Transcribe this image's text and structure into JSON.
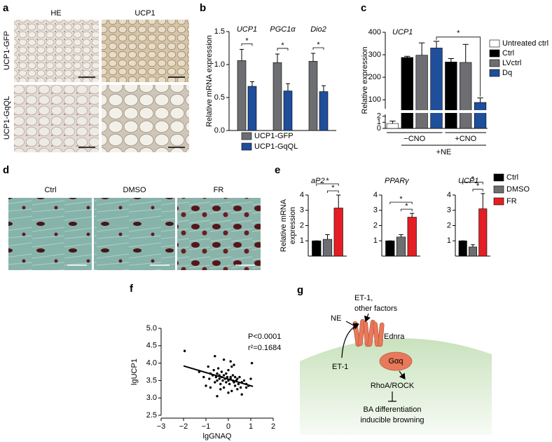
{
  "panel_a": {
    "panel": "a",
    "columns": [
      "HE",
      "UCP1"
    ],
    "rows": [
      "UCP1-GFP",
      "UCP1-GqQL"
    ]
  },
  "panel_d": {
    "panel": "d",
    "labels": [
      "Ctrl",
      "DMSO",
      "FR"
    ]
  },
  "panel_g": {
    "panel": "g",
    "ne": "NE",
    "factors": [
      "ET-1,",
      "other factors"
    ],
    "receptor": "Ednra",
    "g_protein": "Gαq",
    "ligand": "ET-1",
    "effector": "RhoA/ROCK",
    "outcome": [
      "BA differentiation",
      "inducible browning"
    ]
  },
  "chart_data": [
    {
      "type": "bar",
      "panel": "b",
      "ylabel": "Relative mRNA expression",
      "categories": [
        "UCP1",
        "PGC1α",
        "Dio2"
      ],
      "series": [
        {
          "name": "UCP1-GFP",
          "color": "#6d6e71",
          "values": [
            1.06,
            1.03,
            1.05
          ],
          "errors": [
            0.17,
            0.13,
            0.12
          ]
        },
        {
          "name": "UCP1-GqQL",
          "color": "#1f4e9a",
          "values": [
            0.67,
            0.6,
            0.59
          ],
          "errors": [
            0.07,
            0.11,
            0.09
          ]
        }
      ],
      "ylim": [
        0,
        1.5
      ],
      "yticks": [
        {
          "value": 0,
          "label": "0.0"
        },
        0.5,
        {
          "value": 1,
          "label": "1.0"
        },
        1.5
      ],
      "significance": [
        "*",
        "*",
        "*"
      ]
    },
    {
      "type": "bar",
      "panel": "c",
      "title": "UCP1",
      "ylabel": "Relative expression",
      "categories": [
        "−CNO",
        "+CNO"
      ],
      "group_label": "+NE",
      "series": [
        {
          "name": "Untreated ctrl",
          "color": "#ffffff",
          "values": [
            0.8,
            null
          ],
          "errors": [
            0.4,
            null
          ]
        },
        {
          "name": "Ctrl",
          "color": "#000000",
          "values": [
            288,
            268
          ],
          "errors": [
            5,
            15
          ]
        },
        {
          "name": "LVctrl",
          "color": "#6d6e71",
          "values": [
            298,
            266
          ],
          "errors": [
            55,
            80
          ]
        },
        {
          "name": "Dq",
          "color": "#1f4e9a",
          "values": [
            330,
            88
          ],
          "errors": [
            30,
            20
          ]
        }
      ],
      "ylim": [
        0,
        400
      ],
      "axis_break": [
        2.3,
        60
      ],
      "yticks": [
        0,
        1,
        2,
        100,
        200,
        300,
        400
      ],
      "significance": [
        "*"
      ]
    },
    {
      "type": "bar",
      "panel": "e",
      "title": "aP2",
      "ylabel": [
        "Relative mRNA",
        "expression"
      ],
      "categories": [
        "Ctrl",
        "DMSO",
        "FR"
      ],
      "colors": [
        "#000000",
        "#6d6e71",
        "#e31e24"
      ],
      "values": [
        1,
        1.1,
        3.15
      ],
      "errors": [
        0,
        0.3,
        0.85
      ],
      "ylim": [
        0,
        4
      ],
      "yticks": [
        1,
        2,
        3,
        4
      ],
      "significance": [
        "*",
        "*"
      ]
    },
    {
      "type": "bar",
      "title": "PPARγ",
      "colors": [
        "#000000",
        "#6d6e71",
        "#e31e24"
      ],
      "values": [
        1,
        1.25,
        2.55
      ],
      "errors": [
        0,
        0.15,
        0.25
      ],
      "ylim": [
        0,
        4
      ],
      "yticks": [
        1,
        2,
        3,
        4
      ],
      "significance": [
        "*",
        "*"
      ]
    },
    {
      "type": "bar",
      "title": "UCP1",
      "colors": [
        "#000000",
        "#6d6e71",
        "#e31e24"
      ],
      "values": [
        1,
        0.6,
        3.1
      ],
      "errors": [
        0,
        0.15,
        1.0
      ],
      "ylim": [
        0,
        4
      ],
      "yticks": [
        1,
        2,
        3,
        4
      ],
      "significance": [
        "*",
        "*"
      ]
    },
    {
      "type": "scatter",
      "panel": "f",
      "xlabel": "lgGNAQ",
      "ylabel": "lgUCP1",
      "color": "#000000",
      "x": [
        -1.95,
        -1.3,
        -1.1,
        -0.9,
        -0.85,
        -0.8,
        -0.7,
        -0.65,
        -0.6,
        -0.55,
        -0.5,
        -0.5,
        -0.45,
        -0.4,
        -0.4,
        -0.35,
        -0.3,
        -0.3,
        -0.25,
        -0.2,
        -0.2,
        -0.15,
        -0.1,
        -0.1,
        -0.05,
        0,
        0,
        0.05,
        0.1,
        0.1,
        0.15,
        0.2,
        0.2,
        0.25,
        0.3,
        0.3,
        0.35,
        0.4,
        0.45,
        0.5,
        0.55,
        0.6,
        0.7,
        0.8,
        0.9,
        1.0,
        1.05,
        -0.6,
        -0.2,
        0.1,
        0.4,
        0.6,
        -0.8,
        -0.35,
        0.0,
        0.25,
        -0.5,
        0.15,
        0.8,
        -1.0
      ],
      "y": [
        4.35,
        3.75,
        3.6,
        3.9,
        3.55,
        3.7,
        3.65,
        3.8,
        3.45,
        3.6,
        3.7,
        3.5,
        3.85,
        3.55,
        3.65,
        3.4,
        3.6,
        3.75,
        3.5,
        3.65,
        3.3,
        3.55,
        3.7,
        3.45,
        3.6,
        3.5,
        3.8,
        3.4,
        3.6,
        3.55,
        3.2,
        3.5,
        3.65,
        3.45,
        3.6,
        3.35,
        3.5,
        3.55,
        3.4,
        3.6,
        3.3,
        3.45,
        3.5,
        3.4,
        3.35,
        3.55,
        4.0,
        4.2,
        4.1,
        4.05,
        3.25,
        3.1,
        3.3,
        3.25,
        3.15,
        3.95,
        3.05,
        3.9,
        3.3,
        3.35
      ],
      "fit": {
        "x": [
          -2,
          1.1
        ],
        "y": [
          3.92,
          3.33
        ]
      },
      "xlim": [
        -3,
        2
      ],
      "xticks": [
        {
          "value": -3,
          "label": "−3"
        },
        {
          "value": -2,
          "label": "−2"
        },
        {
          "value": -1,
          "label": "−1"
        },
        0,
        1,
        2
      ],
      "ylim": [
        2.5,
        5
      ],
      "yticks": [
        2.5,
        {
          "value": 3,
          "label": "3.0"
        },
        3.5,
        {
          "value": 4,
          "label": "4.0"
        },
        4.5,
        {
          "value": 5,
          "label": "5.0"
        }
      ],
      "annotations": [
        "P<0.0001",
        "r²=0.1684"
      ]
    }
  ]
}
